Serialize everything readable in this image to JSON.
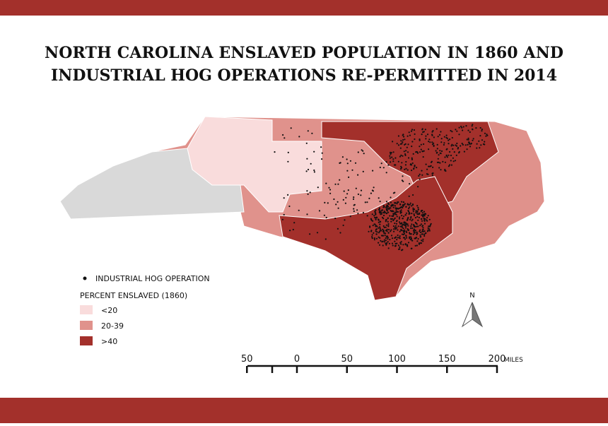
{
  "header": {
    "title_lines": [
      "NORTH CAROLINA ENSLAVED POPULATION IN 1860 AND",
      "INDUSTRIAL HOG OPERATIONS RE-PERMITTED IN 2014"
    ]
  },
  "legend": {
    "hog_label": "INDUSTRIAL HOG OPERATION",
    "title": "PERCENT ENSLAVED (1860)",
    "classes": [
      {
        "label": "<20",
        "color": "#f9dcdc"
      },
      {
        "label": "20-39",
        "color": "#e0928c"
      },
      {
        "label": ">40",
        "color": "#a3302b"
      }
    ]
  },
  "north": "N",
  "scale": {
    "ticks": [
      {
        "value": -50,
        "label": "50"
      },
      0,
      50,
      100,
      150,
      200
    ],
    "unit": "MILES"
  }
}
